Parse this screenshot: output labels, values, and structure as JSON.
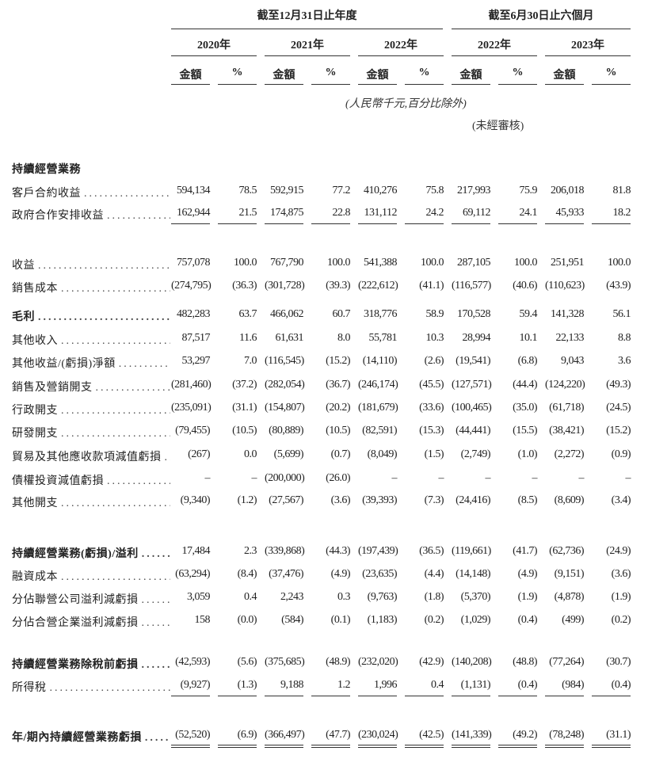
{
  "header": {
    "group_year": "截至12月31日止年度",
    "group_half": "截至6月30日止六個月",
    "years": [
      "2020年",
      "2021年",
      "2022年",
      "2022年",
      "2023年"
    ],
    "amount_label": "金額",
    "percent_label": "%",
    "unit_note": "(人民幣千元,百分比除外)",
    "unaudited_note": "(未經審核)"
  },
  "section_title": "持續經營業務",
  "rows": [
    {
      "label": "客戶合約收益",
      "bold": false,
      "values": [
        "594,134",
        "78.5",
        "592,915",
        "77.2",
        "410,276",
        "75.8",
        "217,993",
        "75.9",
        "206,018",
        "81.8"
      ]
    },
    {
      "label": "政府合作安排收益",
      "bold": false,
      "values": [
        "162,944",
        "21.5",
        "174,875",
        "22.8",
        "131,112",
        "24.2",
        "69,112",
        "24.1",
        "45,933",
        "18.2"
      ]
    },
    {
      "label": "收益",
      "bold": false,
      "values": [
        "757,078",
        "100.0",
        "767,790",
        "100.0",
        "541,388",
        "100.0",
        "287,105",
        "100.0",
        "251,951",
        "100.0"
      ]
    },
    {
      "label": "銷售成本",
      "bold": false,
      "values": [
        "(274,795)",
        "(36.3)",
        "(301,728)",
        "(39.3)",
        "(222,612)",
        "(41.1)",
        "(116,577)",
        "(40.6)",
        "(110,623)",
        "(43.9)"
      ]
    },
    {
      "label": "毛利",
      "bold": true,
      "values": [
        "482,283",
        "63.7",
        "466,062",
        "60.7",
        "318,776",
        "58.9",
        "170,528",
        "59.4",
        "141,328",
        "56.1"
      ]
    },
    {
      "label": "其他收入",
      "bold": false,
      "values": [
        "87,517",
        "11.6",
        "61,631",
        "8.0",
        "55,781",
        "10.3",
        "28,994",
        "10.1",
        "22,133",
        "8.8"
      ]
    },
    {
      "label": "其他收益/(虧損)淨額",
      "bold": false,
      "values": [
        "53,297",
        "7.0",
        "(116,545)",
        "(15.2)",
        "(14,110)",
        "(2.6)",
        "(19,541)",
        "(6.8)",
        "9,043",
        "3.6"
      ]
    },
    {
      "label": "銷售及營銷開支",
      "bold": false,
      "values": [
        "(281,460)",
        "(37.2)",
        "(282,054)",
        "(36.7)",
        "(246,174)",
        "(45.5)",
        "(127,571)",
        "(44.4)",
        "(124,220)",
        "(49.3)"
      ]
    },
    {
      "label": "行政開支",
      "bold": false,
      "values": [
        "(235,091)",
        "(31.1)",
        "(154,807)",
        "(20.2)",
        "(181,679)",
        "(33.6)",
        "(100,465)",
        "(35.0)",
        "(61,718)",
        "(24.5)"
      ]
    },
    {
      "label": "研發開支",
      "bold": false,
      "values": [
        "(79,455)",
        "(10.5)",
        "(80,889)",
        "(10.5)",
        "(82,591)",
        "(15.3)",
        "(44,441)",
        "(15.5)",
        "(38,421)",
        "(15.2)"
      ]
    },
    {
      "label": "貿易及其他應收款項減值虧損",
      "bold": false,
      "values": [
        "(267)",
        "0.0",
        "(5,699)",
        "(0.7)",
        "(8,049)",
        "(1.5)",
        "(2,749)",
        "(1.0)",
        "(2,272)",
        "(0.9)"
      ]
    },
    {
      "label": "債權投資減值虧損",
      "bold": false,
      "values": [
        "–",
        "–",
        "(200,000)",
        "(26.0)",
        "–",
        "–",
        "–",
        "–",
        "–",
        "–"
      ]
    },
    {
      "label": "其他開支",
      "bold": false,
      "values": [
        "(9,340)",
        "(1.2)",
        "(27,567)",
        "(3.6)",
        "(39,393)",
        "(7.3)",
        "(24,416)",
        "(8.5)",
        "(8,609)",
        "(3.4)"
      ]
    },
    {
      "label": "持續經營業務(虧損)/溢利",
      "bold": true,
      "values": [
        "17,484",
        "2.3",
        "(339,868)",
        "(44.3)",
        "(197,439)",
        "(36.5)",
        "(119,661)",
        "(41.7)",
        "(62,736)",
        "(24.9)"
      ]
    },
    {
      "label": "融資成本",
      "bold": false,
      "values": [
        "(63,294)",
        "(8.4)",
        "(37,476)",
        "(4.9)",
        "(23,635)",
        "(4.4)",
        "(14,148)",
        "(4.9)",
        "(9,151)",
        "(3.6)"
      ]
    },
    {
      "label": "分佔聯營公司溢利減虧損",
      "bold": false,
      "values": [
        "3,059",
        "0.4",
        "2,243",
        "0.3",
        "(9,763)",
        "(1.8)",
        "(5,370)",
        "(1.9)",
        "(4,878)",
        "(1.9)"
      ]
    },
    {
      "label": "分佔合營企業溢利減虧損",
      "bold": false,
      "values": [
        "158",
        "(0.0)",
        "(584)",
        "(0.1)",
        "(1,183)",
        "(0.2)",
        "(1,029)",
        "(0.4)",
        "(499)",
        "(0.2)"
      ]
    },
    {
      "label": "持續經營業務除稅前虧損",
      "bold": true,
      "values": [
        "(42,593)",
        "(5.6)",
        "(375,685)",
        "(48.9)",
        "(232,020)",
        "(42.9)",
        "(140,208)",
        "(48.8)",
        "(77,264)",
        "(30.7)"
      ]
    },
    {
      "label": "所得稅",
      "bold": false,
      "values": [
        "(9,927)",
        "(1.3)",
        "9,188",
        "1.2",
        "1,996",
        "0.4",
        "(1,131)",
        "(0.4)",
        "(984)",
        "(0.4)"
      ]
    },
    {
      "label": "年/期內持續經營業務虧損",
      "bold": true,
      "values": [
        "(52,520)",
        "(6.9)",
        "(366,497)",
        "(47.7)",
        "(230,024)",
        "(42.5)",
        "(141,339)",
        "(49.2)",
        "(78,248)",
        "(31.1)"
      ]
    }
  ]
}
